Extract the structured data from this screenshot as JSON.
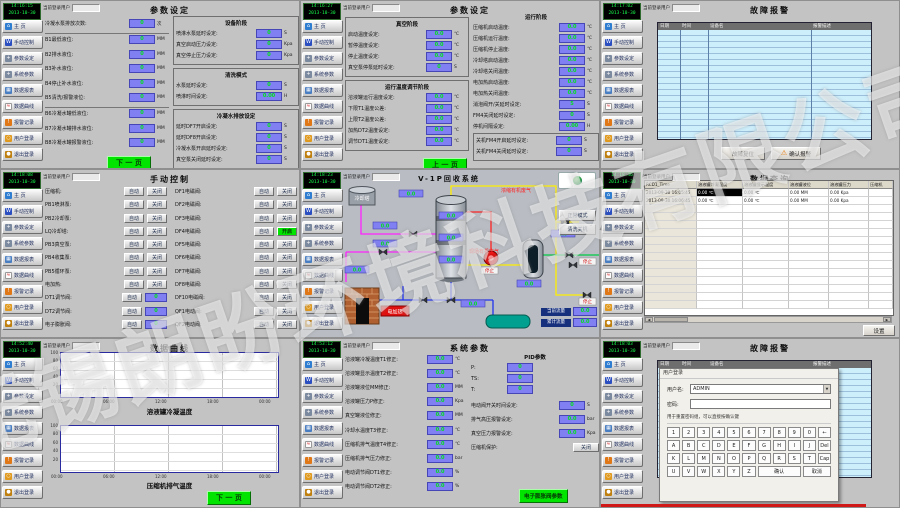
{
  "watermark": "无锡朗盼环境科技有限公司",
  "shared": {
    "user_label": "当前登录用户",
    "user_value": "",
    "sidebar": [
      {
        "id": "home",
        "label": "主  页"
      },
      {
        "id": "manual",
        "label": "手动控制"
      },
      {
        "id": "param",
        "label": "参数设定"
      },
      {
        "id": "system",
        "label": "系统参数"
      },
      {
        "id": "report",
        "label": "数据报表"
      },
      {
        "id": "curve",
        "label": "数据曲线"
      },
      {
        "id": "alarm",
        "label": "报警记录"
      },
      {
        "id": "login",
        "label": "用户登录"
      },
      {
        "id": "logout",
        "label": "退出登录"
      }
    ]
  },
  "panels": {
    "p1": {
      "title": "参数设定",
      "clock": {
        "time": "14:16:15",
        "date": "2013-10-30"
      },
      "fields": [
        {
          "label": "冷凝水泵排放次数:",
          "value": "0",
          "unit": "次"
        },
        {
          "label": "B1最低液位:",
          "value": "0",
          "unit": "MM"
        },
        {
          "label": "B2排水液位:",
          "value": "0",
          "unit": "MM"
        },
        {
          "label": "B3补水液位:",
          "value": "0",
          "unit": "MM"
        },
        {
          "label": "B4停止补水液位:",
          "value": "0",
          "unit": "MM"
        },
        {
          "label": "B5清洗/报警液位:",
          "value": "0",
          "unit": "MM"
        },
        {
          "label": "B6冷凝水罐低液位:",
          "value": "0",
          "unit": "MM"
        },
        {
          "label": "B7冷凝水罐排水液位:",
          "value": "0",
          "unit": "MM"
        },
        {
          "label": "B8冷凝水罐报警液位:",
          "value": "0",
          "unit": "MM"
        }
      ],
      "groups": [
        {
          "title": "设备阶段",
          "fields": [
            {
              "label": "喷淋水泵延时设定:",
              "value": "0",
              "unit": "S"
            },
            {
              "label": "真空启动压力设定:",
              "value": "0",
              "unit": "Kpa"
            },
            {
              "label": "真空停止压力设定:",
              "value": "0",
              "unit": "Kpa"
            }
          ]
        },
        {
          "title": "清洗模式",
          "fields": [
            {
              "label": "水泵延时设定:",
              "value": "0",
              "unit": "S"
            },
            {
              "label": "喷淋时间设定:",
              "value": "0.00",
              "unit": "H"
            }
          ]
        },
        {
          "title": "冷凝水排放设定",
          "fields": [
            {
              "label": "延时DF7开启设定:",
              "value": "0",
              "unit": "S"
            },
            {
              "label": "延时DF8开启设定:",
              "value": "0",
              "unit": "S"
            },
            {
              "label": "冷凝水泵开启延时设定:",
              "value": "0",
              "unit": "S"
            },
            {
              "label": "真空泵关闭延时设定:",
              "value": "0",
              "unit": "S"
            }
          ]
        }
      ],
      "nav_button": "下 一 页"
    },
    "p2": {
      "title": "参数设定",
      "clock": {
        "time": "14:16:27",
        "date": "2013-10-30"
      },
      "left_groups": [
        {
          "title": "真空阶段",
          "fields": [
            {
              "label": "启动温度设定:",
              "value": "0.0",
              "unit": "℃"
            },
            {
              "label": "暂停温度设定:",
              "value": "0.0",
              "unit": "℃"
            },
            {
              "label": "停止温度设定:",
              "value": "0.0",
              "unit": "℃"
            },
            {
              "label": "真空泵停泵延时设定:",
              "value": "0",
              "unit": "S"
            }
          ]
        },
        {
          "title": "运行温度调节阶段",
          "fields": [
            {
              "label": "溶液罐运行温度设定:",
              "value": "0.0",
              "unit": "℃"
            },
            {
              "label": "下限T1温度公差:",
              "value": "0.0",
              "unit": "℃"
            },
            {
              "label": "上限T2温度公差:",
              "value": "0.0",
              "unit": "℃"
            },
            {
              "label": "加热DT2温度设定:",
              "value": "0.0",
              "unit": "℃"
            },
            {
              "label": "调节DT1温度设定:",
              "value": "0.0",
              "unit": "℃"
            }
          ]
        }
      ],
      "right_title": "运行阶段",
      "right_fields": [
        {
          "label": "压缩机启动温度:",
          "value": "0.0",
          "unit": "℃"
        },
        {
          "label": "压缩机运行温度:",
          "value": "0.0",
          "unit": "℃"
        },
        {
          "label": "压缩机停止温度:",
          "value": "0.0",
          "unit": "℃"
        },
        {
          "label": "冷却塔启动温度:",
          "value": "0.0",
          "unit": "℃"
        },
        {
          "label": "冷却塔关闭温度:",
          "value": "0.0",
          "unit": "℃"
        },
        {
          "label": "电加热启动温度:",
          "value": "0.0",
          "unit": "℃"
        },
        {
          "label": "电加热关闭温度:",
          "value": "0.0",
          "unit": "℃"
        },
        {
          "label": "消泡阀开/关延时设定:",
          "value": "5",
          "unit": "S"
        },
        {
          "label": "FM4关闭延时设定:",
          "value": "0",
          "unit": "S"
        },
        {
          "label": "停机间隔设定:",
          "value": "0.00",
          "unit": "H"
        }
      ],
      "shutdown_group": {
        "title": "",
        "fields": [
          {
            "label": "关机FM4开启延时设定:",
            "value": "0",
            "unit": "S"
          },
          {
            "label": "关机FM4关闭延时设定:",
            "value": "0",
            "unit": "S"
          }
        ]
      },
      "nav_button": "上 一 页"
    },
    "p3": {
      "title": "故障报警",
      "clock": {
        "time": "14:17:02",
        "date": "2013-10-30"
      },
      "headers": [
        "日期",
        "时间",
        "设备名",
        "报警描述"
      ],
      "buttons": [
        "故障复位",
        "确认报警"
      ]
    },
    "p4": {
      "title": "手动控制",
      "clock": {
        "time": "14:18:08",
        "date": "2013-10-30"
      },
      "left_rows": [
        {
          "label": "压缩机:",
          "btn1": "自动",
          "btn2": "关闭"
        },
        {
          "label": "PB1喷淋泵:",
          "btn1": "自动",
          "btn2": "关闭"
        },
        {
          "label": "PB2冷却泵:",
          "btn1": "自动",
          "btn2": "关闭"
        },
        {
          "label": "LQ冷却塔:",
          "btn1": "自动",
          "btn2": "关闭"
        },
        {
          "label": "PB3真空泵:",
          "btn1": "自动",
          "btn2": "关闭"
        },
        {
          "label": "PB4收集泵:",
          "btn1": "自动",
          "btn2": "关闭"
        },
        {
          "label": "PB5循环泵:",
          "btn1": "自动",
          "btn2": "关闭"
        },
        {
          "label": "电加热:",
          "btn1": "自动",
          "btn2": "关闭"
        },
        {
          "label": "DT1调节阀:",
          "btn1": "自动",
          "value": "0"
        },
        {
          "label": "DT2调节阀:",
          "btn1": "自动",
          "value": "0"
        },
        {
          "label": "电子膨胀阀:",
          "btn1": "自动",
          "value": "0"
        }
      ],
      "right_rows": [
        {
          "label": "DF1电磁阀:",
          "btn1": "自动",
          "btn2": "关闭"
        },
        {
          "label": "DF2电磁阀:",
          "btn1": "自动",
          "btn2": "关闭"
        },
        {
          "label": "DF3电磁阀:",
          "btn1": "自动",
          "btn2": "关闭"
        },
        {
          "label": "DF4电磁阀:",
          "btn1": "自动",
          "btn2": "开启",
          "on": true
        },
        {
          "label": "DF5电磁阀:",
          "btn1": "自动",
          "btn2": "关闭"
        },
        {
          "label": "DF6电磁阀:",
          "btn1": "自动",
          "btn2": "关闭"
        },
        {
          "label": "DF7电磁阀:",
          "btn1": "自动",
          "btn2": "关闭"
        },
        {
          "label": "DF8电磁阀:",
          "btn1": "自动",
          "btn2": "关闭"
        },
        {
          "label": "DF10电磁阀:",
          "btn1": "自动",
          "btn2": "关闭"
        },
        {
          "label": "QF1电动阀:",
          "btn1": "自动",
          "btn2": "关闭"
        },
        {
          "label": "QF2电动阀:",
          "btn1": "自动",
          "btn2": "关闭"
        }
      ]
    },
    "p5": {
      "title": "V-1P回收系统",
      "clock": {
        "time": "14:18:23",
        "date": "2013-10-30"
      },
      "mode_buttons": [
        "正常模式",
        "清洗关机"
      ],
      "labels": {
        "tower": "冷却塔",
        "gas_in": "现场有机废气",
        "gas_out": "浓缩有机废气",
        "heater": "电加热",
        "stop": "停止",
        "value_display": "0.0",
        "flow_rows": [
          {
            "label": "当前流量",
            "value": "0.0"
          },
          {
            "label": "累计流量",
            "value": "0.0"
          }
        ]
      }
    },
    "p6": {
      "title": "数据查询",
      "clock": {
        "time": "14:18:46",
        "date": "2013-10-30"
      },
      "headers": [
        "RCD1_Time",
        "溶液罐冷凝温度",
        "溶液罐显示温度",
        "溶液罐液位",
        "溶液罐压力",
        "压缩机"
      ],
      "rows": [
        [
          "2013-09-30 16:05:45",
          "0.00 ℃",
          "0.00 ℃",
          "0.00 MM",
          "0.00 Kpa",
          ""
        ],
        [
          "2013-09-30 16:06:45",
          "0.00 ℃",
          "0.00 ℃",
          "0.00 MM",
          "0.00 Kpa",
          ""
        ]
      ],
      "button": "设置"
    },
    "p7": {
      "title": "数据曲线",
      "clock": {
        "time": "14:52:40",
        "date": "2013-10-30"
      },
      "chart_data": [
        {
          "type": "line",
          "title": "溶液罐冷凝温度",
          "x_ticks": [
            "00:00",
            "06:00",
            "12:00",
            "18:00",
            "00:00"
          ],
          "y_ticks": [
            100,
            80,
            60,
            40,
            20
          ],
          "series": [],
          "note": "empty trend, no data plotted",
          "grid": true
        },
        {
          "type": "line",
          "title": "压缩机排气温度",
          "x_ticks": [
            "00:00",
            "06:00",
            "12:00",
            "18:00",
            "00:00"
          ],
          "y_ticks": [
            100,
            80,
            60,
            40,
            20
          ],
          "series": [],
          "note": "empty trend, no data plotted",
          "grid": true
        }
      ],
      "nav_button": "下 一 页"
    },
    "p8": {
      "title": "系统参数",
      "clock": {
        "time": "14:53:12",
        "date": "2013-10-30"
      },
      "fields": [
        {
          "label": "溶液罐冷凝温度T1修正:",
          "value": "0.0",
          "unit": "℃"
        },
        {
          "label": "溶液罐显示温度T2修正:",
          "value": "0.0",
          "unit": "℃"
        },
        {
          "label": "溶液罐液位MM修正:",
          "value": "0.0",
          "unit": "MM"
        },
        {
          "label": "溶液罐压力P修正:",
          "value": "0.0",
          "unit": "Kpa"
        },
        {
          "label": "真空罐液位修正:",
          "value": "0.0",
          "unit": "MM"
        },
        {
          "label": "冷却水温度T3修正:",
          "value": "0.0",
          "unit": "℃"
        },
        {
          "label": "压缩机排气温度T4修正:",
          "value": "0.0",
          "unit": "℃"
        },
        {
          "label": "压缩机排气压力修正:",
          "value": "0.0",
          "unit": "bar"
        },
        {
          "label": "电动调节阀DT1修正:",
          "value": "0.0",
          "unit": "%"
        },
        {
          "label": "电动调节阀DT2修正:",
          "value": "0.0",
          "unit": "%"
        }
      ],
      "pid_title": "PID参数",
      "pid_rows": [
        {
          "label": "P:",
          "value": "0"
        },
        {
          "label": "TS:",
          "value": "0"
        },
        {
          "label": "T:",
          "value": "0"
        }
      ],
      "extra_fields": [
        {
          "label": "电动阀开关时间设定:",
          "value": "0",
          "unit": "S"
        },
        {
          "label": "排气高压报警设定:",
          "value": "0.0",
          "unit": "bar"
        },
        {
          "label": "真空压力报警设定:",
          "value": "0.0",
          "unit": "Kpa"
        }
      ],
      "protect_label": "压缩机保护:",
      "protect_button": "关闭",
      "bottom_button": "电子膨胀阀参数"
    },
    "p9": {
      "title": "故障报警",
      "clock": {
        "time": "14:18:03",
        "date": "2013-10-30"
      },
      "headers": [
        "日期",
        "时间",
        "设备名",
        "报警描述"
      ],
      "dialog": {
        "title": "用户登录",
        "username_label": "用户名:",
        "username_value": "ADMIN",
        "password_label": "密码:",
        "hint": "用于重置密码组，可以直接按确认键",
        "key_rows": [
          [
            "1",
            "2",
            "3",
            "4",
            "5",
            "6",
            "7",
            "8",
            "9",
            "0",
            "←"
          ],
          [
            "A",
            "B",
            "C",
            "D",
            "E",
            "F",
            "G",
            "H",
            "I",
            "J",
            "Del"
          ],
          [
            "K",
            "L",
            "M",
            "N",
            "O",
            "P",
            "Q",
            "R",
            "S",
            "T",
            "Cap"
          ],
          [
            "U",
            "V",
            "W",
            "X",
            "Y",
            "Z"
          ]
        ],
        "ok": "确认",
        "cancel": "取消"
      }
    }
  }
}
